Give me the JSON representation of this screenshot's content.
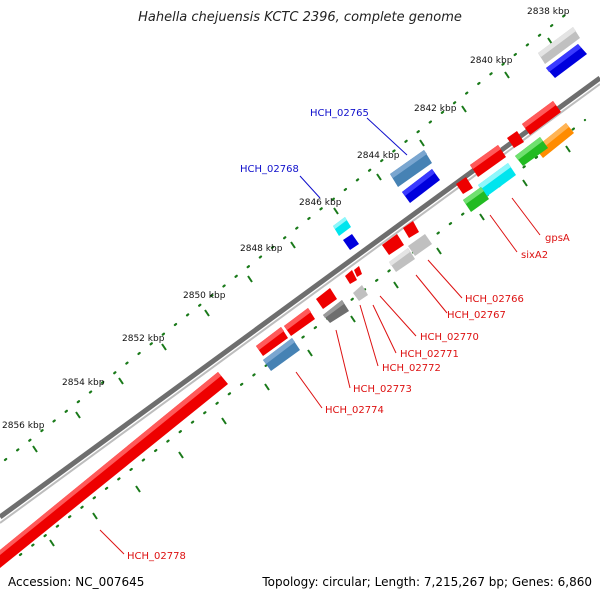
{
  "title": "Hahella chejuensis KCTC 2396, complete genome",
  "accession_text": "Accession: NC_007645",
  "summary_text": "Topology: circular; Length: 7,215,267 bp; Genes: 6,860",
  "colors": {
    "backbone": "#888888",
    "tick": "#1a7a1a",
    "forward_feature": "#0000ee",
    "reverse_feature": "#ee0000",
    "label_forward": "#1010cc",
    "label_reverse": "#dd1111"
  },
  "scale_labels": [
    "2838 kbp",
    "2840 kbp",
    "2842 kbp",
    "2844 kbp",
    "2846 kbp",
    "2848 kbp",
    "2850 kbp",
    "2852 kbp",
    "2854 kbp",
    "2856 kbp"
  ],
  "gene_labels_outer": [
    "HCH_02765",
    "HCH_02768"
  ],
  "gene_labels_inner": [
    "gpsA",
    "sixA2",
    "HCH_02766",
    "HCH_02767",
    "HCH_02770",
    "HCH_02771",
    "HCH_02772",
    "HCH_02773",
    "HCH_02774",
    "HCH_02778"
  ]
}
